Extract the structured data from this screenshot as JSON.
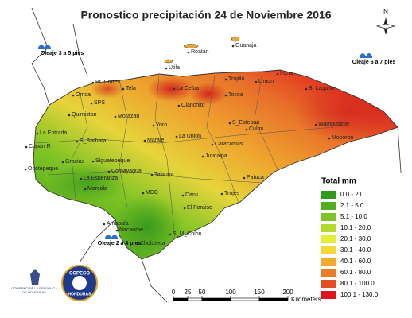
{
  "title": "Pronostico precipitación 24 de Noviembre 2016",
  "compass": "N",
  "places": [
    "Roatan",
    "Guanaja",
    "Utila",
    "Pt. Cortes",
    "La Ceiba",
    "Trujillo",
    "Limon",
    "Irona",
    "B_Laguna",
    "Tela",
    "Tocoa",
    "Olanchito",
    "SPS",
    "Omoa",
    "Quimistan",
    "Morazan",
    "Yoro",
    "S_Esteban",
    "Culmi",
    "Wampusirpe",
    "Mocoron",
    "La Entrada",
    "Copan R",
    "S_Barbara",
    "Gracias",
    "Ocotepeque",
    "Siguatepeque",
    "Comayagua",
    "La Esperanza",
    "Marcala",
    "Marale",
    "La Union",
    "Catacamas",
    "Juticalpa",
    "Talanga",
    "MDC",
    "Danli",
    "El Paraiso",
    "Trojes",
    "Patuca",
    "Amapala",
    "Choluteca",
    "S_M_Colon",
    "Nacaome"
  ],
  "waves": [
    "Oleaje 3 a 5 pies",
    "Oleaje 6 a 7 pies",
    "Oleaje 2 a 4 pies"
  ],
  "legend": {
    "title": "Total mm",
    "items": [
      {
        "label": "0.0 - 2.0",
        "color": "#2f9a1c"
      },
      {
        "label": "2.1 - 5.0",
        "color": "#4fae1f"
      },
      {
        "label": "5.1 - 10.0",
        "color": "#7ec424"
      },
      {
        "label": "10.1 - 20.0",
        "color": "#b2d92b"
      },
      {
        "label": "20.1 - 30.0",
        "color": "#e6ee34"
      },
      {
        "label": "30.1 - 40.0",
        "color": "#f5d736"
      },
      {
        "label": "40.1 - 60.0",
        "color": "#f2aa2c"
      },
      {
        "label": "60.1 - 80.0",
        "color": "#ea7e26"
      },
      {
        "label": "80.1 - 100.0",
        "color": "#e24e22"
      },
      {
        "label": "100.1 - 130.0",
        "color": "#e0141c"
      }
    ]
  },
  "scale": {
    "ticks": [
      0,
      25,
      50,
      100,
      150,
      200
    ],
    "unit": "Kilometers"
  },
  "logos": {
    "government": "GOBIERNO DE LA REPÚBLICA DE HONDURAS",
    "agency": "COPECO",
    "country": "HONDURAS"
  }
}
